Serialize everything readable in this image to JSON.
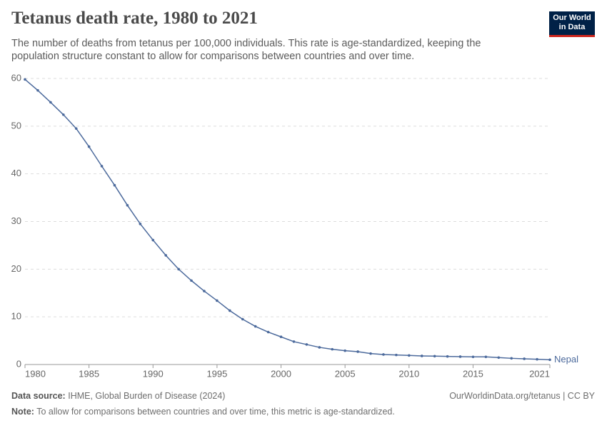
{
  "chart_data": {
    "type": "line",
    "title": "Tetanus death rate, 1980 to 2021",
    "subtitle": "The number of deaths from tetanus per 100,000 individuals. This rate is age-standardized, keeping the population structure constant to allow for comparisons between countries and over time.",
    "x": [
      1980,
      1981,
      1982,
      1983,
      1984,
      1985,
      1986,
      1987,
      1988,
      1989,
      1990,
      1991,
      1992,
      1993,
      1994,
      1995,
      1996,
      1997,
      1998,
      1999,
      2000,
      2001,
      2002,
      2003,
      2004,
      2005,
      2006,
      2007,
      2008,
      2009,
      2010,
      2011,
      2012,
      2013,
      2014,
      2015,
      2016,
      2017,
      2018,
      2019,
      2020,
      2021
    ],
    "series": [
      {
        "name": "Nepal",
        "color": "#4c6a9c",
        "values": [
          59.8,
          57.5,
          55.0,
          52.4,
          49.5,
          45.7,
          41.6,
          37.6,
          33.4,
          29.5,
          26.1,
          22.9,
          20.0,
          17.6,
          15.4,
          13.4,
          11.3,
          9.5,
          8.0,
          6.8,
          5.8,
          4.8,
          4.2,
          3.6,
          3.2,
          2.9,
          2.7,
          2.3,
          2.1,
          2.0,
          1.9,
          1.8,
          1.75,
          1.7,
          1.65,
          1.6,
          1.6,
          1.45,
          1.3,
          1.2,
          1.1,
          1.0
        ]
      }
    ],
    "xlim": [
      1980,
      2021
    ],
    "xticks": [
      1980,
      1985,
      1990,
      1995,
      2000,
      2005,
      2010,
      2015,
      2021
    ],
    "ylim": [
      0,
      60
    ],
    "yticks": [
      0,
      10,
      20,
      30,
      40,
      50,
      60
    ],
    "grid": true
  },
  "logo": {
    "line1": "Our World",
    "line2": "in Data"
  },
  "footer": {
    "source_label": "Data source:",
    "source": "IHME, Global Burden of Disease (2024)",
    "link": "OurWorldinData.org/tetanus | CC BY",
    "note_label": "Note:",
    "note": "To allow for comparisons between countries and over time, this metric is age-standardized."
  }
}
